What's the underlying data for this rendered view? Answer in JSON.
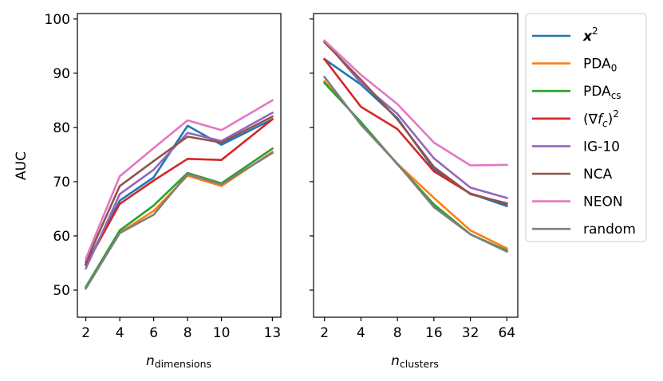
{
  "chart_data": [
    {
      "type": "line",
      "panel": "left",
      "x": [
        2,
        4,
        6,
        8,
        10,
        13
      ],
      "xticks": [
        "2",
        "4",
        "6",
        "8",
        "10",
        "13"
      ],
      "xlabel": "n",
      "xlabel_subscript": "dimensions",
      "ylabel": "AUC",
      "yticks": [
        "50",
        "60",
        "70",
        "80",
        "90",
        "100"
      ],
      "ylim": [
        45,
        101
      ],
      "xlim": [
        1.5,
        13.5
      ],
      "series": [
        {
          "name": "x^2",
          "values": [
            54.8,
            66.5,
            70.8,
            80.3,
            76.8,
            81.5
          ]
        },
        {
          "name": "PDA0",
          "values": [
            50.4,
            60.6,
            64.6,
            71.1,
            69.2,
            75.5
          ]
        },
        {
          "name": "PDAcs",
          "values": [
            50.6,
            61.0,
            65.6,
            71.6,
            69.7,
            76.1
          ]
        },
        {
          "name": "(grad fc)^2",
          "values": [
            54.6,
            65.9,
            70.2,
            74.2,
            74.0,
            81.5
          ]
        },
        {
          "name": "IG-10",
          "values": [
            54.0,
            67.7,
            72.2,
            79.0,
            77.5,
            82.7
          ]
        },
        {
          "name": "NCA",
          "values": [
            55.2,
            69.2,
            73.8,
            78.3,
            77.2,
            82.0
          ]
        },
        {
          "name": "NEON",
          "values": [
            55.8,
            71.0,
            76.2,
            81.3,
            79.5,
            85.0
          ]
        },
        {
          "name": "random",
          "values": [
            50.3,
            60.5,
            63.9,
            71.4,
            69.5,
            75.3
          ]
        }
      ]
    },
    {
      "type": "line",
      "panel": "right",
      "x": [
        2,
        4,
        8,
        16,
        32,
        64
      ],
      "xscale": "log2",
      "xticks": [
        "2",
        "4",
        "8",
        "16",
        "32",
        "64"
      ],
      "xlabel": "n",
      "xlabel_subscript": "clusters",
      "ylim": [
        45,
        101
      ],
      "series": [
        {
          "name": "x^2",
          "values": [
            92.6,
            87.9,
            81.7,
            72.3,
            67.8,
            65.5
          ]
        },
        {
          "name": "PDA0",
          "values": [
            88.5,
            80.8,
            73.3,
            67.0,
            61.0,
            57.7
          ]
        },
        {
          "name": "PDAcs",
          "values": [
            88.2,
            81.0,
            73.2,
            65.8,
            60.3,
            57.3
          ]
        },
        {
          "name": "(grad fc)^2",
          "values": [
            92.6,
            83.8,
            79.7,
            71.9,
            67.8,
            65.9
          ]
        },
        {
          "name": "IG-10",
          "values": [
            96.0,
            88.2,
            82.5,
            74.3,
            68.9,
            67.0
          ]
        },
        {
          "name": "NCA",
          "values": [
            95.7,
            88.8,
            81.5,
            72.7,
            67.7,
            66.0
          ]
        },
        {
          "name": "NEON",
          "values": [
            96.0,
            89.7,
            84.3,
            77.2,
            73.0,
            73.1
          ]
        },
        {
          "name": "random",
          "values": [
            89.3,
            80.5,
            73.3,
            65.3,
            60.3,
            57.1
          ]
        }
      ]
    }
  ],
  "legend": {
    "placement": "right",
    "entries": [
      {
        "label": "x",
        "sup": "2",
        "color": "#1f77b4"
      },
      {
        "label": "PDA",
        "sub": "0",
        "color": "#ff7f0e"
      },
      {
        "label": "PDA",
        "sub": "cs",
        "color": "#2ca02c"
      },
      {
        "label_pre": "(∇",
        "label_mid": "f",
        "label_mid_sub": "c",
        "label_post": ")",
        "sup": "2",
        "color": "#d62728"
      },
      {
        "label": "IG-10",
        "color": "#9467bd"
      },
      {
        "label": "NCA",
        "color": "#8c564b"
      },
      {
        "label": "NEON",
        "color": "#e377c2"
      },
      {
        "label": "random",
        "color": "#7f7f7f"
      }
    ]
  }
}
